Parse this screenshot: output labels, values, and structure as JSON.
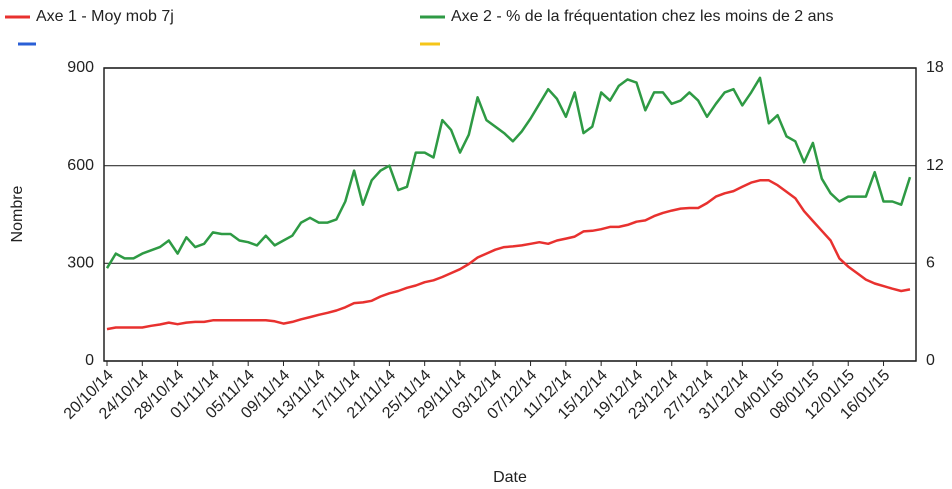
{
  "chart_data": {
    "type": "line",
    "x_label": "Date",
    "y_label": "Nombre",
    "categories": [
      "20/10/14",
      null,
      null,
      null,
      "24/10/14",
      null,
      null,
      null,
      "28/10/14",
      null,
      null,
      null,
      "01/11/14",
      null,
      null,
      null,
      "05/11/14",
      null,
      null,
      null,
      "09/11/14",
      null,
      null,
      null,
      "13/11/14",
      null,
      null,
      null,
      "17/11/14",
      null,
      null,
      null,
      "21/11/14",
      null,
      null,
      null,
      "25/11/14",
      null,
      null,
      null,
      "29/11/14",
      null,
      null,
      null,
      "03/12/14",
      null,
      null,
      null,
      "07/12/14",
      null,
      null,
      null,
      "11/12/14",
      null,
      null,
      null,
      "15/12/14",
      null,
      null,
      null,
      "19/12/14",
      null,
      null,
      null,
      "23/12/14",
      null,
      null,
      null,
      "27/12/14",
      null,
      null,
      null,
      "31/12/14",
      null,
      null,
      null,
      "04/01/15",
      null,
      null,
      null,
      "08/01/15",
      null,
      null,
      null,
      "12/01/15",
      null,
      null,
      null,
      "16/01/15",
      null,
      null,
      null
    ],
    "series": [
      {
        "name": "Axe 1 - Moy mob 7j",
        "color": "#e8312f",
        "axis": "y",
        "values": [
          98,
          103,
          103,
          103,
          103,
          108,
          112,
          118,
          113,
          118,
          120,
          120,
          125,
          125,
          125,
          125,
          125,
          125,
          125,
          122,
          115,
          120,
          128,
          135,
          142,
          148,
          155,
          165,
          178,
          180,
          185,
          198,
          208,
          215,
          225,
          232,
          242,
          248,
          258,
          270,
          282,
          298,
          318,
          330,
          342,
          350,
          352,
          355,
          360,
          365,
          360,
          370,
          376,
          382,
          398,
          400,
          405,
          412,
          412,
          418,
          428,
          432,
          445,
          455,
          462,
          468,
          470,
          470,
          485,
          505,
          515,
          522,
          535,
          548,
          555,
          555,
          540,
          520,
          500,
          460,
          430,
          400,
          370,
          315,
          290,
          270,
          250,
          238,
          230,
          222,
          215,
          220
        ]
      },
      {
        "name": "Axe 2 - % de la fréquentation chez les moins de 2 ans",
        "color": "#2e9a44",
        "axis": "y2",
        "values": [
          5.7,
          6.6,
          6.3,
          6.3,
          6.6,
          6.8,
          7.0,
          7.4,
          6.6,
          7.6,
          7.0,
          7.2,
          7.9,
          7.8,
          7.8,
          7.4,
          7.3,
          7.1,
          7.7,
          7.1,
          7.4,
          7.7,
          8.5,
          8.8,
          8.5,
          8.5,
          8.7,
          9.8,
          11.7,
          9.6,
          11.1,
          11.7,
          12.0,
          10.5,
          10.7,
          12.8,
          12.8,
          12.5,
          14.8,
          14.2,
          12.8,
          13.9,
          16.2,
          14.8,
          14.4,
          14.0,
          13.5,
          14.1,
          14.9,
          15.8,
          16.7,
          16.1,
          15.0,
          16.5,
          14.0,
          14.4,
          16.5,
          16.0,
          16.9,
          17.3,
          17.1,
          15.4,
          16.5,
          16.5,
          15.8,
          16.0,
          16.5,
          16.0,
          15.0,
          15.8,
          16.5,
          16.7,
          15.7,
          16.5,
          17.4,
          14.6,
          15.1,
          13.8,
          13.5,
          12.2,
          13.4,
          11.2,
          10.3,
          9.8,
          10.1,
          10.1,
          10.1,
          11.6,
          9.8,
          9.8,
          9.6,
          11.3
        ]
      }
    ],
    "ylim": [
      0,
      900
    ],
    "yticks": [
      0,
      300,
      600,
      900
    ],
    "y2lim": [
      0,
      18
    ],
    "y2ticks": [
      0,
      6,
      12,
      18
    ],
    "grid": true,
    "legend": "top"
  }
}
